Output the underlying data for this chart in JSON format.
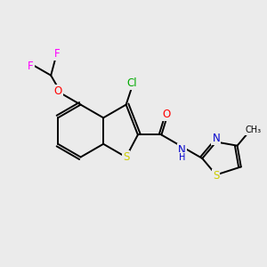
{
  "bg_color": "#ebebeb",
  "atom_colors": {
    "C": "#000000",
    "H": "#000000",
    "N": "#0000cc",
    "O": "#ff0000",
    "S": "#cccc00",
    "F": "#ff00ff",
    "Cl": "#00aa00"
  },
  "bond_color": "#000000",
  "lw": 1.4,
  "fs": 8.5
}
